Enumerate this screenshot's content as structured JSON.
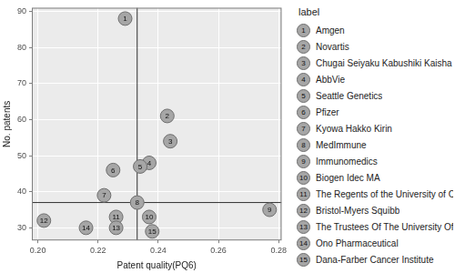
{
  "chart_data": {
    "type": "scatter",
    "x_label": "Patent quality(PQ6)",
    "y_label": "No. patents",
    "x": [
      0.229,
      0.243,
      0.244,
      0.237,
      0.234,
      0.225,
      0.222,
      0.233,
      0.277,
      0.237,
      0.226,
      0.202,
      0.226,
      0.216,
      0.238
    ],
    "values": [
      88,
      61,
      54,
      48,
      47,
      46,
      39,
      37,
      35,
      33,
      33,
      32,
      30,
      30,
      29
    ],
    "point_labels": [
      "1",
      "2",
      "3",
      "4",
      "5",
      "6",
      "7",
      "8",
      "9",
      "10",
      "11",
      "12",
      "13",
      "14",
      "15"
    ],
    "legend_title": "label",
    "legend_names": [
      "Amgen",
      "Novartis",
      "Chugai Seiyaku Kabushiki Kaisha",
      "AbbVie",
      "Seattle Genetics",
      "Pfizer",
      "Kyowa Hakko Kirin",
      "MedImmune",
      "Immunomedics",
      "Biogen Idec MA",
      "The Regents of the University of California",
      "Bristol-Myers Squibb",
      "The Trustees Of The University Of Pennsylvania",
      "Ono Pharmaceutical",
      "Dana-Farber Cancer Institute"
    ],
    "reference_lines": {
      "x": 0.233,
      "y": 37
    },
    "color": "#a6a6a6",
    "marker": "circle",
    "xlim": [
      0.198,
      0.281
    ],
    "xticks": [
      {
        "value": 0.2,
        "label": "0.20"
      },
      0.22,
      0.24,
      0.26,
      0.28
    ],
    "ylim": [
      26.5,
      91
    ],
    "yticks": [
      30,
      40,
      50,
      60,
      70,
      80,
      90
    ],
    "grid": true,
    "legend": "right"
  }
}
